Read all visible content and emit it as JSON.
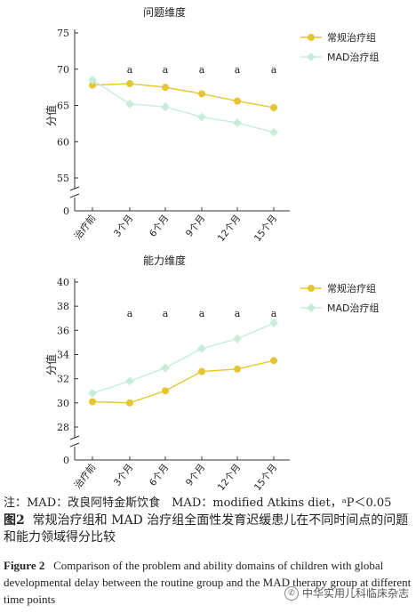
{
  "chart_data": [
    {
      "type": "line",
      "title": "问题维度",
      "xlabel": "",
      "ylabel": "分值",
      "categories": [
        "治疗前",
        "3个月",
        "6个月",
        "9个月",
        "12个月",
        "15个月"
      ],
      "yticks": [
        "0",
        "55",
        "60",
        "65",
        "70",
        "75"
      ],
      "ylim": [
        55,
        75
      ],
      "axis_break": true,
      "series": [
        {
          "name": "常规治疗组",
          "color": "#e5c632",
          "marker": "circle",
          "values": [
            67.8,
            68.0,
            67.5,
            66.6,
            65.6,
            64.7
          ]
        },
        {
          "name": "MAD治疗组",
          "color": "#c7ecdc",
          "marker": "diamond",
          "values": [
            68.5,
            65.2,
            64.8,
            63.4,
            62.6,
            61.3
          ]
        }
      ],
      "annotations": [
        "",
        "a",
        "a",
        "a",
        "a",
        "a"
      ],
      "legend": "top-right"
    },
    {
      "type": "line",
      "title": "能力维度",
      "xlabel": "",
      "ylabel": "分值",
      "categories": [
        "治疗前",
        "3个月",
        "6个月",
        "9个月",
        "12个月",
        "15个月"
      ],
      "yticks": [
        "0",
        "28",
        "30",
        "32",
        "34",
        "36",
        "38",
        "40"
      ],
      "ylim": [
        28,
        40
      ],
      "axis_break": true,
      "series": [
        {
          "name": "常规治疗组",
          "color": "#e5c632",
          "marker": "circle",
          "values": [
            30.1,
            30.0,
            31.0,
            32.6,
            32.8,
            33.5
          ]
        },
        {
          "name": "MAD治疗组",
          "color": "#c7ecdc",
          "marker": "diamond",
          "values": [
            30.8,
            31.8,
            32.9,
            34.5,
            35.3,
            36.6
          ]
        }
      ],
      "annotations": [
        "",
        "a",
        "a",
        "a",
        "a",
        "a"
      ],
      "legend": "top-right"
    }
  ],
  "caption": {
    "note": "注：MAD：改良阿特金斯饮食　MAD：modified Atkins diet，ᵃP＜0.05",
    "zh_label": "图2",
    "zh_text": "常规治疗组和 MAD 治疗组全面性发育迟缓患儿在不同时间点的问题和能力领域得分比较",
    "en_label": "Figure 2",
    "en_text": "Comparison of the problem and ability domains of children with global developmental delay between the routine group and the MAD therapy group at different time points"
  },
  "watermark": "中华实用儿科临床杂志"
}
